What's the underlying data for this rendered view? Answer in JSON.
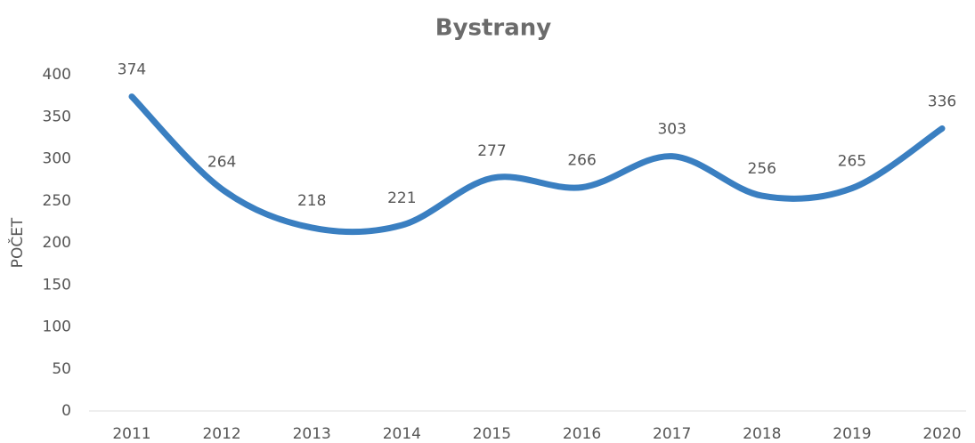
{
  "chart_data": {
    "type": "line",
    "title": "Bystrany",
    "y_label": "POČET",
    "categories": [
      "2011",
      "2012",
      "2013",
      "2014",
      "2015",
      "2016",
      "2017",
      "2018",
      "2019",
      "2020"
    ],
    "series": [
      {
        "name": "Bystrany",
        "color": "#3a7fc1",
        "values": [
          374,
          264,
          218,
          221,
          277,
          266,
          303,
          256,
          265,
          336
        ]
      }
    ],
    "ylim": [
      0,
      400
    ],
    "yticks": [
      0,
      50,
      100,
      150,
      200,
      250,
      300,
      350,
      400
    ],
    "smooth": true,
    "data_labels": true
  }
}
